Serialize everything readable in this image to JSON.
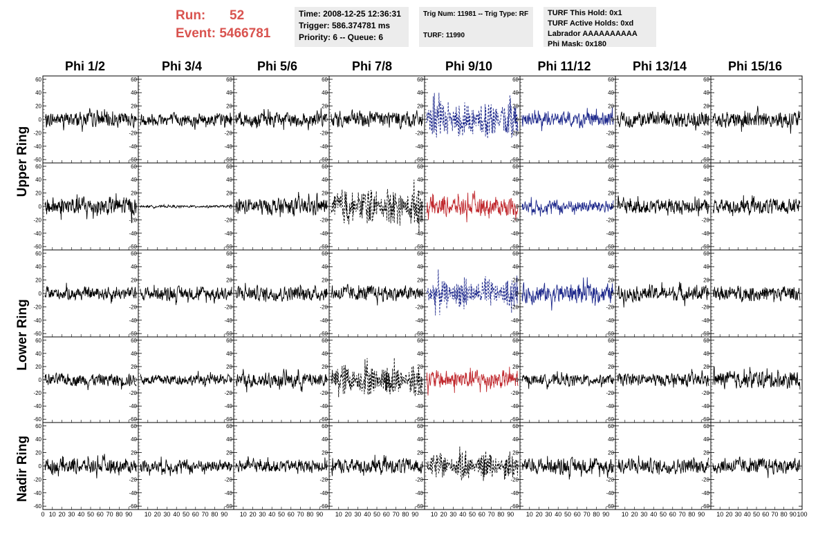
{
  "header": {
    "run_label": "Run:",
    "run_value": "52",
    "event_label": "Event:",
    "event_value": "5466781",
    "time": "Time: 2008-12-25 12:36:31",
    "trigger": "Trigger: 586.374781 ms",
    "priority": "Priority: 6 -- Queue: 6",
    "trig_num": "Trig Num: 11981 -- Trig Type: RF",
    "turf": "TURF: 11990",
    "turf_hold": "TURF This Hold: 0x1",
    "turf_active": "TURF Active Holds: 0xd",
    "labrador": "Labrador AAAAAAAAAA",
    "phi_mask": "Phi Mask: 0x180"
  },
  "columns": [
    "Phi 1/2",
    "Phi 3/4",
    "Phi 5/6",
    "Phi 7/8",
    "Phi 9/10",
    "Phi 11/12",
    "Phi 13/14",
    "Phi 15/16"
  ],
  "ring_labels": [
    "Upper Ring",
    "Lower Ring",
    "Nadir Ring"
  ],
  "colors": {
    "black": "#000000",
    "blue": "#1f2a8c",
    "red": "#c0282d",
    "header_red": "#d9534f",
    "box_bg": "#ececec"
  },
  "chart_data": {
    "type": "line",
    "description_rows": 5,
    "description_cols": 8,
    "ylim": [
      -65,
      65
    ],
    "xlim": [
      0,
      100
    ],
    "yticks": [
      -60,
      -40,
      -20,
      0,
      20,
      40,
      60
    ],
    "xticks": [
      0,
      10,
      20,
      30,
      40,
      50,
      60,
      70,
      80,
      90,
      100
    ],
    "x_tick_labels_bottom": [
      "0",
      "10",
      "20",
      "30",
      "40",
      "50",
      "60",
      "70",
      "80",
      "90",
      "100"
    ],
    "grid": false,
    "panels": [
      [
        {
          "style": "solid",
          "color": "black",
          "amp": 14
        },
        {
          "style": "solid",
          "color": "black",
          "amp": 12
        },
        {
          "style": "solid",
          "color": "black",
          "amp": 14
        },
        {
          "style": "solid",
          "color": "black",
          "amp": 16
        },
        {
          "style": "dashed",
          "color": "blue",
          "amp": 24
        },
        {
          "style": "solid",
          "color": "blue",
          "amp": 14
        },
        {
          "style": "solid",
          "color": "black",
          "amp": 14
        },
        {
          "style": "solid",
          "color": "black",
          "amp": 16
        }
      ],
      [
        {
          "style": "solid",
          "color": "black",
          "amp": 18
        },
        {
          "style": "solid",
          "color": "black",
          "amp": 2
        },
        {
          "style": "solid",
          "color": "black",
          "amp": 16
        },
        {
          "style": "dashed",
          "color": "black",
          "amp": 22
        },
        {
          "style": "solid",
          "color": "red",
          "amp": 18
        },
        {
          "style": "solid",
          "color": "blue",
          "amp": 12
        },
        {
          "style": "solid",
          "color": "black",
          "amp": 14
        },
        {
          "style": "solid",
          "color": "black",
          "amp": 14
        }
      ],
      [
        {
          "style": "solid",
          "color": "black",
          "amp": 12
        },
        {
          "style": "solid",
          "color": "black",
          "amp": 12
        },
        {
          "style": "solid",
          "color": "black",
          "amp": 14
        },
        {
          "style": "solid",
          "color": "black",
          "amp": 14
        },
        {
          "style": "dashed",
          "color": "blue",
          "amp": 18
        },
        {
          "style": "solid",
          "color": "blue",
          "amp": 18
        },
        {
          "style": "solid",
          "color": "black",
          "amp": 14
        },
        {
          "style": "solid",
          "color": "black",
          "amp": 14
        }
      ],
      [
        {
          "style": "solid",
          "color": "black",
          "amp": 12
        },
        {
          "style": "solid",
          "color": "black",
          "amp": 10
        },
        {
          "style": "solid",
          "color": "black",
          "amp": 14
        },
        {
          "style": "dashed",
          "color": "black",
          "amp": 20
        },
        {
          "style": "solid",
          "color": "red",
          "amp": 18
        },
        {
          "style": "solid",
          "color": "black",
          "amp": 10
        },
        {
          "style": "solid",
          "color": "black",
          "amp": 12
        },
        {
          "style": "solid",
          "color": "black",
          "amp": 16
        }
      ],
      [
        {
          "style": "solid",
          "color": "black",
          "amp": 14
        },
        {
          "style": "solid",
          "color": "black",
          "amp": 12
        },
        {
          "style": "solid",
          "color": "black",
          "amp": 12
        },
        {
          "style": "solid",
          "color": "black",
          "amp": 14
        },
        {
          "style": "dashed",
          "color": "black",
          "amp": 16
        },
        {
          "style": "solid",
          "color": "black",
          "amp": 14
        },
        {
          "style": "solid",
          "color": "black",
          "amp": 14
        },
        {
          "style": "solid",
          "color": "black",
          "amp": 14
        }
      ]
    ]
  }
}
